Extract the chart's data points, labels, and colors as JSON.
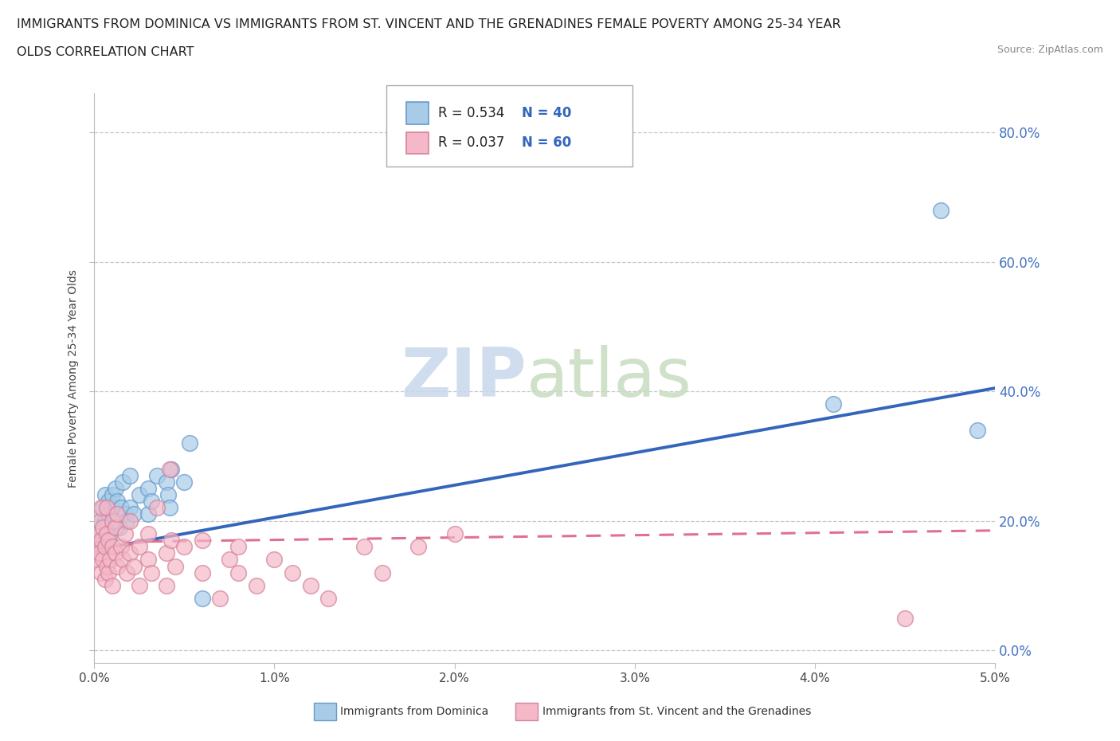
{
  "title_line1": "IMMIGRANTS FROM DOMINICA VS IMMIGRANTS FROM ST. VINCENT AND THE GRENADINES FEMALE POVERTY AMONG 25-34 YEAR",
  "title_line2": "OLDS CORRELATION CHART",
  "source_text": "Source: ZipAtlas.com",
  "ylabel": "Female Poverty Among 25-34 Year Olds",
  "xlim": [
    0.0,
    0.05
  ],
  "ylim": [
    -0.02,
    0.86
  ],
  "xticks": [
    0.0,
    0.01,
    0.02,
    0.03,
    0.04,
    0.05
  ],
  "xticklabels": [
    "0.0%",
    "1.0%",
    "2.0%",
    "3.0%",
    "4.0%",
    "5.0%"
  ],
  "ytick_positions": [
    0.0,
    0.2,
    0.4,
    0.6,
    0.8
  ],
  "ytick_labels": [
    "0.0%",
    "20.0%",
    "40.0%",
    "60.0%",
    "80.0%"
  ],
  "dominica_color": "#A8CCE8",
  "dominica_edge": "#6699CC",
  "vincent_color": "#F4B8C8",
  "vincent_edge": "#D4829A",
  "dominica_R": 0.534,
  "dominica_N": 40,
  "vincent_R": 0.037,
  "vincent_N": 60,
  "dominica_line_color": "#3366BB",
  "vincent_line_color_solid": "#E07090",
  "vincent_line_color_dash": "#E07090",
  "watermark_zip": "ZIP",
  "watermark_atlas": "atlas",
  "dominica_x": [
    0.0002,
    0.0003,
    0.0004,
    0.0004,
    0.0005,
    0.0005,
    0.0006,
    0.0006,
    0.0007,
    0.0008,
    0.0008,
    0.0009,
    0.001,
    0.001,
    0.0012,
    0.0013,
    0.0013,
    0.0014,
    0.0015,
    0.0016,
    0.0017,
    0.0018,
    0.002,
    0.002,
    0.0022,
    0.0025,
    0.003,
    0.003,
    0.0032,
    0.0035,
    0.004,
    0.0041,
    0.0042,
    0.0043,
    0.005,
    0.0053,
    0.006,
    0.041,
    0.047,
    0.049
  ],
  "dominica_y": [
    0.19,
    0.18,
    0.16,
    0.2,
    0.17,
    0.22,
    0.2,
    0.24,
    0.19,
    0.21,
    0.23,
    0.18,
    0.22,
    0.24,
    0.25,
    0.2,
    0.23,
    0.19,
    0.22,
    0.26,
    0.21,
    0.2,
    0.22,
    0.27,
    0.21,
    0.24,
    0.21,
    0.25,
    0.23,
    0.27,
    0.26,
    0.24,
    0.22,
    0.28,
    0.26,
    0.32,
    0.08,
    0.38,
    0.68,
    0.34
  ],
  "vincent_x": [
    0.0001,
    0.0002,
    0.0002,
    0.0003,
    0.0003,
    0.0004,
    0.0004,
    0.0004,
    0.0005,
    0.0005,
    0.0006,
    0.0006,
    0.0007,
    0.0007,
    0.0007,
    0.0008,
    0.0008,
    0.0009,
    0.001,
    0.001,
    0.001,
    0.0012,
    0.0012,
    0.0013,
    0.0013,
    0.0015,
    0.0016,
    0.0017,
    0.0018,
    0.002,
    0.002,
    0.0022,
    0.0025,
    0.0025,
    0.003,
    0.003,
    0.0032,
    0.0035,
    0.004,
    0.004,
    0.0042,
    0.0043,
    0.0045,
    0.005,
    0.006,
    0.006,
    0.007,
    0.0075,
    0.008,
    0.008,
    0.009,
    0.01,
    0.011,
    0.012,
    0.013,
    0.015,
    0.016,
    0.018,
    0.02,
    0.045
  ],
  "vincent_y": [
    0.16,
    0.14,
    0.18,
    0.15,
    0.2,
    0.12,
    0.17,
    0.22,
    0.14,
    0.19,
    0.11,
    0.16,
    0.13,
    0.18,
    0.22,
    0.12,
    0.17,
    0.14,
    0.16,
    0.2,
    0.1,
    0.15,
    0.19,
    0.13,
    0.21,
    0.16,
    0.14,
    0.18,
    0.12,
    0.15,
    0.2,
    0.13,
    0.16,
    0.1,
    0.14,
    0.18,
    0.12,
    0.22,
    0.15,
    0.1,
    0.28,
    0.17,
    0.13,
    0.16,
    0.12,
    0.17,
    0.08,
    0.14,
    0.12,
    0.16,
    0.1,
    0.14,
    0.12,
    0.1,
    0.08,
    0.16,
    0.12,
    0.16,
    0.18,
    0.05
  ]
}
